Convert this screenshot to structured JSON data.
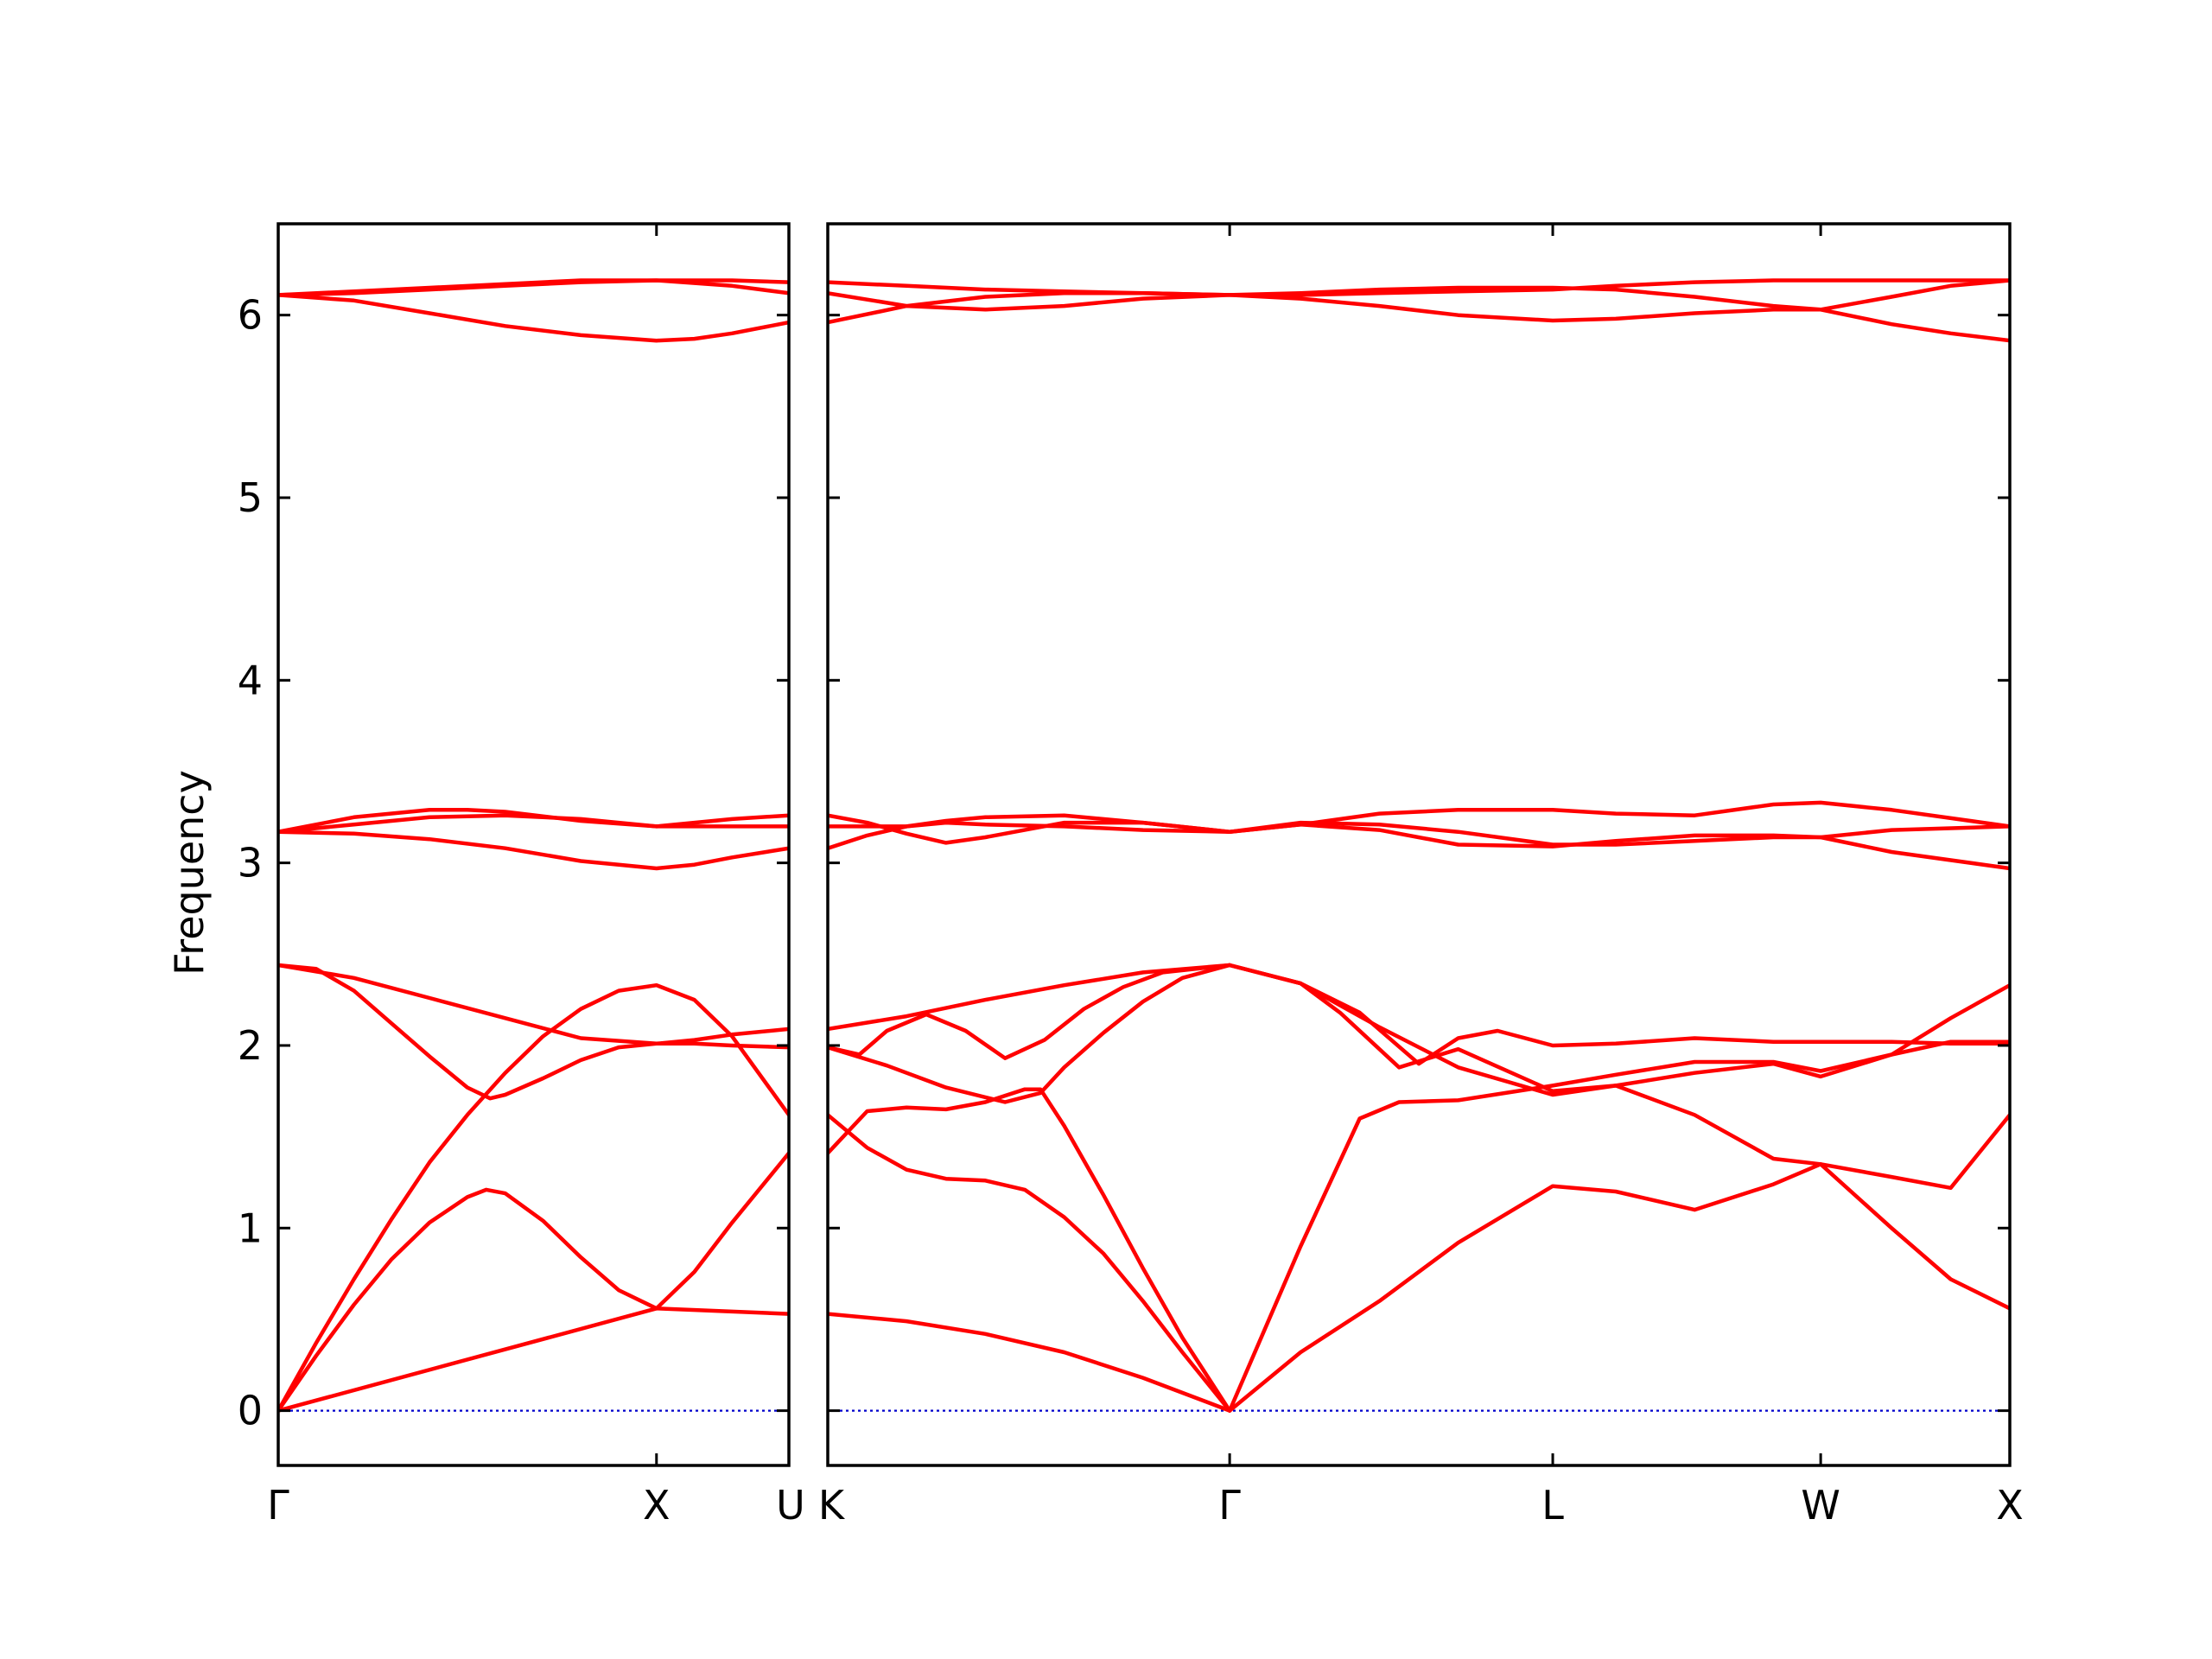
{
  "chart_data": {
    "type": "line",
    "title": "",
    "ylabel": "Frequency",
    "xlabel": "",
    "ylim": [
      -0.3,
      6.5
    ],
    "y_ticks": [
      "0",
      "1",
      "2",
      "3",
      "4",
      "5",
      "6"
    ],
    "grid": false,
    "legend": "none",
    "colors": {
      "bands": "#ff0000",
      "zero_line": "#0000cc",
      "axes": "#000000"
    },
    "panels": [
      {
        "name": "left",
        "x_range": [
          0,
          1.35
        ],
        "x_ticks": [
          {
            "x": 0,
            "label": "Γ"
          },
          {
            "x": 1.0,
            "label": "X"
          },
          {
            "x": 1.35,
            "label": "U"
          }
        ],
        "series": [
          {
            "x": [
              0,
              0.1,
              0.2,
              0.3,
              0.4,
              0.5,
              0.55,
              0.6,
              0.7,
              0.8,
              0.9,
              1.0,
              1.1,
              1.2,
              1.35
            ],
            "y": [
              0,
              0.3,
              0.58,
              0.83,
              1.03,
              1.17,
              1.21,
              1.19,
              1.04,
              0.84,
              0.66,
              0.56,
              0.76,
              1.03,
              1.41
            ]
          },
          {
            "x": [
              0,
              1.0,
              1.35
            ],
            "y": [
              0,
              0.56,
              0.53
            ]
          },
          {
            "x": [
              0,
              0.1,
              0.2,
              0.3,
              0.4,
              0.5,
              0.6,
              0.7,
              0.8,
              0.9,
              1.0,
              1.1,
              1.2,
              1.35
            ],
            "y": [
              0,
              0.37,
              0.72,
              1.05,
              1.36,
              1.62,
              1.85,
              2.05,
              2.2,
              2.3,
              2.33,
              2.25,
              2.05,
              1.62
            ]
          },
          {
            "x": [
              0,
              0.1,
              0.2,
              0.3,
              0.4,
              0.5,
              0.56,
              0.6,
              0.7,
              0.8,
              0.9,
              1.0,
              1.1,
              1.2,
              1.35
            ],
            "y": [
              2.44,
              2.42,
              2.3,
              2.12,
              1.94,
              1.77,
              1.71,
              1.73,
              1.82,
              1.92,
              1.99,
              2.01,
              2.01,
              2.0,
              1.99
            ]
          },
          {
            "x": [
              0,
              0.2,
              0.4,
              0.6,
              0.8,
              1.0,
              1.1,
              1.2,
              1.35
            ],
            "y": [
              2.44,
              2.37,
              2.26,
              2.15,
              2.04,
              2.01,
              2.03,
              2.06,
              2.09
            ]
          },
          {
            "x": [
              0,
              0.2,
              0.4,
              0.6,
              0.8,
              1.0,
              1.1,
              1.2,
              1.35
            ],
            "y": [
              3.17,
              3.16,
              3.13,
              3.08,
              3.01,
              2.97,
              2.99,
              3.03,
              3.08
            ]
          },
          {
            "x": [
              0,
              0.2,
              0.4,
              0.5,
              0.6,
              0.8,
              1.0,
              1.2,
              1.35
            ],
            "y": [
              3.17,
              3.25,
              3.29,
              3.29,
              3.28,
              3.23,
              3.2,
              3.2,
              3.2
            ]
          },
          {
            "x": [
              0,
              0.2,
              0.4,
              0.6,
              0.8,
              1.0,
              1.2,
              1.35
            ],
            "y": [
              3.17,
              3.21,
              3.25,
              3.26,
              3.24,
              3.2,
              3.24,
              3.26
            ]
          },
          {
            "x": [
              0,
              0.2,
              0.4,
              0.6,
              0.8,
              1.0,
              1.1,
              1.2,
              1.35
            ],
            "y": [
              6.11,
              6.08,
              6.01,
              5.94,
              5.89,
              5.86,
              5.87,
              5.9,
              5.96
            ]
          },
          {
            "x": [
              0,
              0.2,
              0.4,
              0.6,
              0.8,
              1.0,
              1.2,
              1.35
            ],
            "y": [
              6.11,
              6.13,
              6.15,
              6.17,
              6.19,
              6.19,
              6.19,
              6.18
            ]
          },
          {
            "x": [
              0,
              0.2,
              0.4,
              0.6,
              0.8,
              1.0,
              1.2,
              1.35
            ],
            "y": [
              6.11,
              6.12,
              6.14,
              6.16,
              6.18,
              6.19,
              6.16,
              6.12
            ]
          }
        ]
      },
      {
        "name": "right",
        "x_range": [
          0,
          3.0
        ],
        "x_ticks": [
          {
            "x": 0,
            "label": "K"
          },
          {
            "x": 1.02,
            "label": "Γ"
          },
          {
            "x": 1.84,
            "label": "L"
          },
          {
            "x": 2.52,
            "label": "W"
          },
          {
            "x": 3.0,
            "label": "X"
          }
        ],
        "series": [
          {
            "x": [
              0,
              0.2,
              0.4,
              0.6,
              0.8,
              1.02
            ],
            "y": [
              0.53,
              0.49,
              0.42,
              0.32,
              0.18,
              0
            ]
          },
          {
            "x": [
              0,
              0.1,
              0.2,
              0.3,
              0.4,
              0.5,
              0.6,
              0.7,
              0.8,
              0.9,
              1.02
            ],
            "y": [
              1.62,
              1.44,
              1.32,
              1.27,
              1.26,
              1.21,
              1.06,
              0.86,
              0.6,
              0.32,
              0
            ]
          },
          {
            "x": [
              0,
              0.1,
              0.2,
              0.3,
              0.4,
              0.5,
              0.54,
              0.6,
              0.7,
              0.8,
              0.9,
              1.02
            ],
            "y": [
              1.41,
              1.64,
              1.66,
              1.65,
              1.69,
              1.76,
              1.76,
              1.56,
              1.18,
              0.78,
              0.4,
              0
            ]
          },
          {
            "x": [
              0,
              0.15,
              0.3,
              0.45,
              0.54,
              0.6,
              0.7,
              0.8,
              0.9,
              1.02
            ],
            "y": [
              1.99,
              1.89,
              1.77,
              1.69,
              1.74,
              1.88,
              2.07,
              2.24,
              2.37,
              2.44
            ]
          },
          {
            "x": [
              0,
              0.08,
              0.15,
              0.25,
              0.35,
              0.45,
              0.55,
              0.65,
              0.75,
              0.85,
              1.02
            ],
            "y": [
              1.99,
              1.95,
              2.08,
              2.17,
              2.08,
              1.93,
              2.03,
              2.2,
              2.32,
              2.4,
              2.44
            ]
          },
          {
            "x": [
              0,
              0.2,
              0.4,
              0.6,
              0.8,
              1.02
            ],
            "y": [
              2.09,
              2.16,
              2.25,
              2.33,
              2.4,
              2.44
            ]
          },
          {
            "x": [
              1.02,
              1.2,
              1.4,
              1.6,
              1.84,
              2.0,
              2.2,
              2.4,
              2.52,
              2.7,
              2.85,
              3.0
            ],
            "y": [
              0,
              0.32,
              0.6,
              0.92,
              1.23,
              1.2,
              1.1,
              1.24,
              1.35,
              1.0,
              0.72,
              0.56
            ]
          },
          {
            "x": [
              1.02,
              1.2,
              1.35,
              1.45,
              1.6,
              1.84,
              2.0,
              2.2,
              2.4,
              2.52,
              2.7,
              2.85,
              3.0
            ],
            "y": [
              0,
              0.9,
              1.6,
              1.69,
              1.7,
              1.78,
              1.84,
              1.91,
              1.91,
              1.86,
              1.95,
              2.02,
              2.02
            ]
          },
          {
            "x": [
              1.02,
              1.2,
              1.3,
              1.45,
              1.6,
              1.84,
              2.0,
              2.2,
              2.4,
              2.52,
              2.7,
              2.85,
              3.0
            ],
            "y": [
              2.44,
              2.34,
              2.18,
              1.88,
              1.98,
              1.75,
              1.78,
              1.62,
              1.38,
              1.35,
              1.28,
              1.22,
              1.62
            ]
          },
          {
            "x": [
              1.02,
              1.2,
              1.35,
              1.5,
              1.6,
              1.7,
              1.84,
              2.0,
              2.2,
              2.4,
              2.52,
              2.7,
              2.85,
              3.0
            ],
            "y": [
              2.44,
              2.34,
              2.18,
              1.9,
              2.04,
              2.08,
              2.0,
              2.01,
              2.04,
              2.02,
              2.02,
              2.02,
              2.01,
              2.01
            ]
          },
          {
            "x": [
              1.02,
              1.2,
              1.4,
              1.6,
              1.84,
              2.0,
              2.2,
              2.4,
              2.52,
              2.7,
              2.85,
              3.0
            ],
            "y": [
              2.44,
              2.34,
              2.1,
              1.88,
              1.73,
              1.78,
              1.85,
              1.9,
              1.83,
              1.95,
              2.15,
              2.33
            ]
          },
          {
            "x": [
              0,
              0.1,
              0.2,
              0.3,
              0.4,
              0.6,
              0.8,
              1.02,
              1.2,
              1.4,
              1.6,
              1.84,
              2.0,
              2.2,
              2.4,
              2.52,
              2.7,
              3.0
            ],
            "y": [
              3.08,
              3.15,
              3.2,
              3.22,
              3.21,
              3.2,
              3.18,
              3.17,
              3.21,
              3.27,
              3.29,
              3.29,
              3.27,
              3.26,
              3.32,
              3.33,
              3.29,
              3.2
            ]
          },
          {
            "x": [
              0,
              0.1,
              0.2,
              0.3,
              0.4,
              0.6,
              0.8,
              1.02,
              1.2,
              1.4,
              1.6,
              1.84,
              2.0,
              2.2,
              2.4,
              2.52,
              2.7,
              3.0
            ],
            "y": [
              3.26,
              3.22,
              3.16,
              3.11,
              3.14,
              3.22,
              3.22,
              3.17,
              3.22,
              3.21,
              3.17,
              3.1,
              3.1,
              3.12,
              3.14,
              3.14,
              3.18,
              3.2
            ]
          },
          {
            "x": [
              0,
              0.1,
              0.2,
              0.3,
              0.4,
              0.6,
              0.8,
              1.02,
              1.2,
              1.4,
              1.6,
              1.84,
              2.0,
              2.2,
              2.4,
              2.52,
              2.7,
              3.0
            ],
            "y": [
              3.2,
              3.2,
              3.2,
              3.23,
              3.25,
              3.26,
              3.22,
              3.17,
              3.21,
              3.18,
              3.1,
              3.09,
              3.12,
              3.15,
              3.15,
              3.14,
              3.06,
              2.97
            ]
          },
          {
            "x": [
              0,
              0.2,
              0.4,
              0.6,
              0.8,
              1.02,
              1.2,
              1.4,
              1.6,
              1.84,
              2.0,
              2.2,
              2.4,
              2.52,
              2.7,
              2.85,
              3.0
            ],
            "y": [
              5.96,
              6.05,
              6.1,
              6.12,
              6.12,
              6.11,
              6.09,
              6.05,
              6.0,
              5.97,
              5.98,
              6.01,
              6.03,
              6.03,
              5.95,
              5.9,
              5.86
            ]
          },
          {
            "x": [
              0,
              0.2,
              0.4,
              0.6,
              0.8,
              1.02,
              1.2,
              1.4,
              1.6,
              1.84,
              2.0,
              2.2,
              2.4,
              2.52,
              2.7,
              2.85,
              3.0
            ],
            "y": [
              6.12,
              6.05,
              6.03,
              6.05,
              6.09,
              6.11,
              6.12,
              6.14,
              6.15,
              6.15,
              6.14,
              6.1,
              6.05,
              6.03,
              6.1,
              6.16,
              6.19
            ]
          },
          {
            "x": [
              0,
              0.2,
              0.4,
              0.6,
              0.8,
              1.02,
              1.2,
              1.4,
              1.6,
              1.84,
              2.0,
              2.2,
              2.4,
              2.52,
              2.7,
              2.85,
              3.0
            ],
            "y": [
              6.18,
              6.16,
              6.14,
              6.13,
              6.12,
              6.11,
              6.11,
              6.12,
              6.13,
              6.14,
              6.16,
              6.18,
              6.19,
              6.19,
              6.19,
              6.19,
              6.19
            ]
          }
        ]
      }
    ]
  }
}
